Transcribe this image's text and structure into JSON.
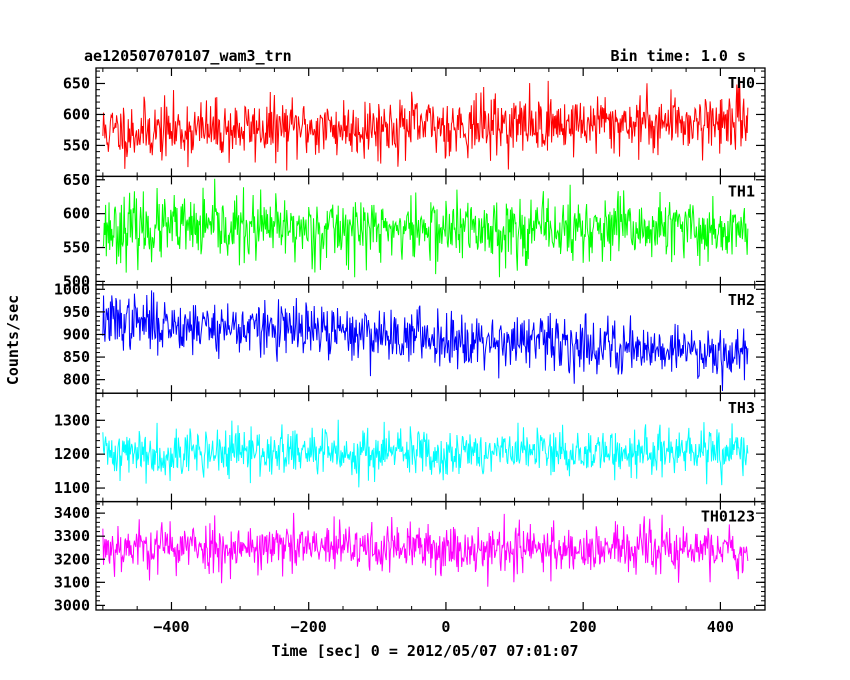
{
  "chart_data": {
    "type": "line",
    "title_left": "ae120507070107_wam3_trn",
    "title_right": "Bin time: 1.0 s",
    "xlabel": "Time [sec] 0 = 2012/05/07 07:01:07",
    "ylabel": "Counts/sec",
    "xlim": [
      -510,
      465
    ],
    "x_range": [
      -500,
      440
    ],
    "bin_time": 1.0,
    "x_ticks": [
      -400,
      -200,
      0,
      200,
      400
    ],
    "x_tick_labels": [
      "−400",
      "−200",
      "0",
      "200",
      "400"
    ],
    "panels": [
      {
        "name": "TH0",
        "color": "#ff0000",
        "ylim": [
          500,
          675
        ],
        "yticks": [
          550,
          600,
          650
        ],
        "ytick_labels": [
          "550",
          "600",
          "650"
        ],
        "mean_start": 572,
        "mean_end": 590,
        "noise": 24,
        "seed": 11
      },
      {
        "name": "TH1",
        "color": "#00ff00",
        "ylim": [
          495,
          655
        ],
        "yticks": [
          500,
          550,
          600,
          650
        ],
        "ytick_labels": [
          "500",
          "550",
          "600",
          "650"
        ],
        "mean_start": 578,
        "mean_end": 576,
        "noise": 24,
        "seed": 23
      },
      {
        "name": "TH2",
        "color": "#0000ff",
        "ylim": [
          770,
          1010
        ],
        "yticks": [
          800,
          850,
          900,
          950,
          1000
        ],
        "ytick_labels": [
          "800",
          "850",
          "900",
          "950",
          "1000"
        ],
        "mean_start": 930,
        "mean_end": 860,
        "noise": 30,
        "seed": 37
      },
      {
        "name": "TH3",
        "color": "#00ffff",
        "ylim": [
          1060,
          1380
        ],
        "yticks": [
          1100,
          1200,
          1300
        ],
        "ytick_labels": [
          "1100",
          "1200",
          "1300"
        ],
        "mean_start": 1205,
        "mean_end": 1205,
        "noise": 36,
        "seed": 41
      },
      {
        "name": "TH0123",
        "color": "#ff00ff",
        "ylim": [
          2980,
          3450
        ],
        "yticks": [
          3000,
          3100,
          3200,
          3300,
          3400
        ],
        "ytick_labels": [
          "3000",
          "3100",
          "3200",
          "3300",
          "3400"
        ],
        "mean_start": 3255,
        "mean_end": 3240,
        "noise": 55,
        "seed": 53
      }
    ],
    "grid": false,
    "legend": "panel labels top-right"
  }
}
